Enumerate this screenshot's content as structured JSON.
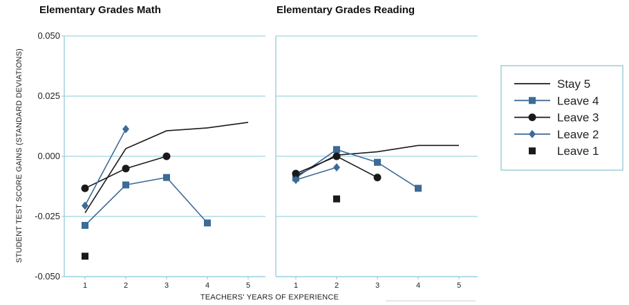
{
  "colors": {
    "stay": "#1a1a1a",
    "blue": "#3d6a96",
    "black": "#1a1a1a",
    "grid": "#9fd3e0",
    "legend_border": "#9ecdd9"
  },
  "chart_data": [
    {
      "type": "line",
      "title": "Elementary Grades Math",
      "xlabel": "TEACHERS' YEARS OF EXPERIENCE",
      "ylabel": "STUDENT TEST SCORE GAINS (STANDARD DEVIATIONS)",
      "x_ticks": [
        "1",
        "2",
        "3",
        "4",
        "5"
      ],
      "y_ticks": [
        "0.050",
        "0.025",
        "0.000",
        "-0.025",
        "-0.050"
      ],
      "ylim": [
        -0.05,
        0.05
      ],
      "xlim": [
        0.5,
        5.3
      ],
      "grid": true,
      "series": [
        {
          "name": "Stay 5",
          "marker": "none",
          "color": "stay",
          "x": [
            1,
            2,
            3,
            4,
            5
          ],
          "y": [
            -0.0235,
            0.0032,
            0.0106,
            0.0118,
            0.0141
          ]
        },
        {
          "name": "Leave 4",
          "marker": "square",
          "color": "blue",
          "x": [
            1,
            2,
            3,
            4
          ],
          "y": [
            -0.0287,
            -0.0119,
            -0.0088,
            -0.0277
          ]
        },
        {
          "name": "Leave 3",
          "marker": "circle",
          "color": "black",
          "x": [
            1,
            2,
            3
          ],
          "y": [
            -0.0133,
            -0.0051,
            0.0
          ]
        },
        {
          "name": "Leave 2",
          "marker": "diamond",
          "color": "blue",
          "x": [
            1,
            2
          ],
          "y": [
            -0.0205,
            0.0113
          ]
        },
        {
          "name": "Leave 1",
          "marker": "square",
          "color": "black",
          "x": [
            1
          ],
          "y": [
            -0.0415
          ]
        }
      ]
    },
    {
      "type": "line",
      "title": "Elementary Grades Reading",
      "xlabel": "TEACHERS' YEARS OF EXPERIENCE",
      "x_ticks": [
        "1",
        "2",
        "3",
        "4",
        "5"
      ],
      "ylim": [
        -0.05,
        0.05
      ],
      "xlim": [
        0.5,
        5.3
      ],
      "grid": true,
      "series": [
        {
          "name": "Stay 5",
          "marker": "none",
          "color": "stay",
          "x": [
            1,
            2,
            3,
            4,
            5
          ],
          "y": [
            -0.0082,
            0.0005,
            0.0019,
            0.0045,
            0.0045
          ]
        },
        {
          "name": "Leave 4",
          "marker": "square",
          "color": "blue",
          "x": [
            1,
            2,
            3,
            4
          ],
          "y": [
            -0.009,
            0.0028,
            -0.0025,
            -0.0133
          ]
        },
        {
          "name": "Leave 3",
          "marker": "circle",
          "color": "black",
          "x": [
            1,
            2,
            3
          ],
          "y": [
            -0.0072,
            0.0,
            -0.0088
          ]
        },
        {
          "name": "Leave 2",
          "marker": "diamond",
          "color": "blue",
          "x": [
            1,
            2
          ],
          "y": [
            -0.0098,
            -0.0046
          ]
        },
        {
          "name": "Leave 1",
          "marker": "square",
          "color": "black",
          "x": [
            2
          ],
          "y": [
            -0.0177
          ]
        }
      ]
    }
  ],
  "legend": {
    "placement": "right",
    "items": [
      {
        "label": "Stay 5",
        "marker": "none",
        "color": "stay"
      },
      {
        "label": "Leave 4",
        "marker": "square",
        "color": "blue"
      },
      {
        "label": "Leave 3",
        "marker": "circle",
        "color": "black"
      },
      {
        "label": "Leave 2",
        "marker": "diamond",
        "color": "blue"
      },
      {
        "label": "Leave 1",
        "marker": "square-only",
        "color": "black"
      }
    ]
  }
}
